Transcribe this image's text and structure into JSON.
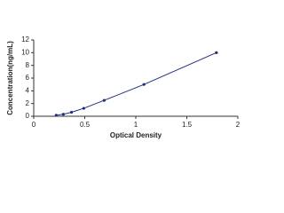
{
  "chart_data": {
    "type": "line",
    "x_label": "Optical Density",
    "y_label": "Concentration(ng/mL)",
    "x": [
      0.22,
      0.29,
      0.37,
      0.49,
      0.69,
      1.08,
      1.79
    ],
    "values": [
      0.156,
      0.312,
      0.625,
      1.25,
      2.5,
      5,
      10
    ],
    "color": "#1f2f7a",
    "xlim": [
      0,
      2
    ],
    "xticks": [
      0,
      0.5,
      1,
      1.5,
      2
    ],
    "ylim": [
      0,
      12
    ],
    "yticks": [
      0,
      2,
      4,
      6,
      8,
      10,
      12
    ],
    "grid": false
  }
}
